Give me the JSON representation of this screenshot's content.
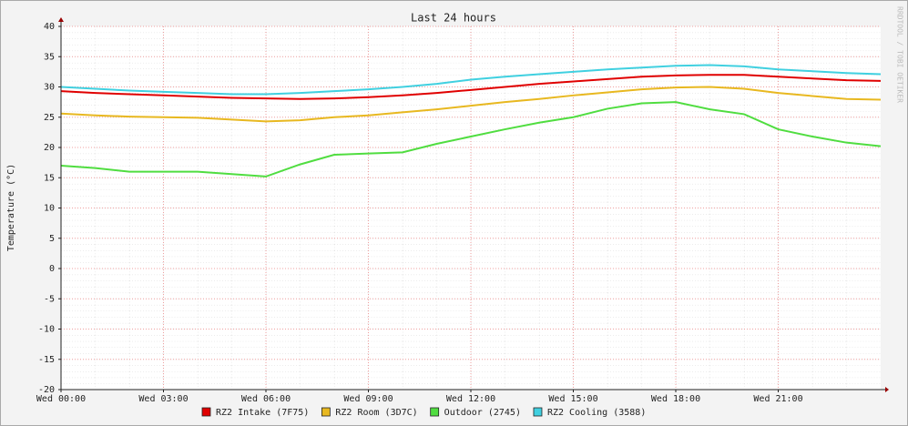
{
  "chart_data": {
    "type": "line",
    "title": "Last 24 hours",
    "y_label": "Temperature (°C)",
    "watermark": "RRDTOOL / TOBI OETIKER",
    "x": [
      0,
      1,
      2,
      3,
      4,
      5,
      6,
      7,
      8,
      9,
      10,
      11,
      12,
      13,
      14,
      15,
      16,
      17,
      18,
      19,
      20,
      21,
      22,
      23,
      24
    ],
    "xlim": [
      0,
      24
    ],
    "xticks": [
      {
        "value": 0,
        "label": "Wed 00:00"
      },
      {
        "value": 3,
        "label": "Wed 03:00"
      },
      {
        "value": 6,
        "label": "Wed 06:00"
      },
      {
        "value": 9,
        "label": "Wed 09:00"
      },
      {
        "value": 12,
        "label": "Wed 12:00"
      },
      {
        "value": 15,
        "label": "Wed 15:00"
      },
      {
        "value": 18,
        "label": "Wed 18:00"
      },
      {
        "value": 21,
        "label": "Wed 21:00"
      }
    ],
    "ylim": [
      -20,
      40
    ],
    "yticks": [
      -20,
      -15,
      -10,
      -5,
      0,
      5,
      10,
      15,
      20,
      25,
      30,
      35,
      40
    ],
    "grid": true,
    "series": [
      {
        "name": "RZ2 Intake (7F75)",
        "color": "#e00000",
        "values": [
          29.3,
          29.0,
          28.8,
          28.6,
          28.4,
          28.2,
          28.1,
          28.0,
          28.1,
          28.3,
          28.6,
          29.0,
          29.5,
          30.0,
          30.5,
          30.9,
          31.3,
          31.7,
          31.9,
          32.0,
          32.0,
          31.7,
          31.4,
          31.1,
          31.0
        ]
      },
      {
        "name": "RZ2 Room (3D7C)",
        "color": "#e8b820",
        "values": [
          25.6,
          25.3,
          25.1,
          25.0,
          24.9,
          24.6,
          24.3,
          24.5,
          25.0,
          25.3,
          25.8,
          26.3,
          26.9,
          27.5,
          28.0,
          28.6,
          29.1,
          29.6,
          29.9,
          30.0,
          29.7,
          29.0,
          28.5,
          28.0,
          27.9
        ]
      },
      {
        "name": "Outdoor (2745)",
        "color": "#50dd40",
        "values": [
          17.0,
          16.6,
          16.0,
          16.0,
          16.0,
          15.6,
          15.2,
          17.2,
          18.8,
          19.0,
          19.2,
          20.6,
          21.8,
          23.0,
          24.1,
          25.0,
          26.4,
          27.3,
          27.5,
          26.3,
          25.5,
          23.0,
          21.8,
          20.8,
          20.2
        ]
      },
      {
        "name": "RZ2 Cooling (3588)",
        "color": "#40d0e0",
        "values": [
          30.0,
          29.7,
          29.4,
          29.2,
          29.0,
          28.8,
          28.8,
          29.0,
          29.3,
          29.6,
          30.0,
          30.5,
          31.2,
          31.7,
          32.1,
          32.5,
          32.9,
          33.2,
          33.5,
          33.6,
          33.4,
          32.9,
          32.6,
          32.3,
          32.1
        ]
      }
    ]
  }
}
